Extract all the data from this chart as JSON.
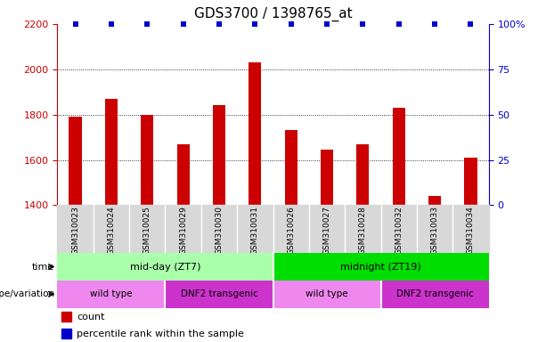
{
  "title": "GDS3700 / 1398765_at",
  "samples": [
    "GSM310023",
    "GSM310024",
    "GSM310025",
    "GSM310029",
    "GSM310030",
    "GSM310031",
    "GSM310026",
    "GSM310027",
    "GSM310028",
    "GSM310032",
    "GSM310033",
    "GSM310034"
  ],
  "counts": [
    1790,
    1870,
    1800,
    1670,
    1840,
    2030,
    1730,
    1645,
    1670,
    1830,
    1440,
    1610
  ],
  "percentiles": [
    100,
    100,
    100,
    100,
    100,
    100,
    100,
    100,
    100,
    100,
    100,
    100
  ],
  "ylim_left": [
    1400,
    2200
  ],
  "ylim_right": [
    0,
    100
  ],
  "yticks_left": [
    1400,
    1600,
    1800,
    2000,
    2200
  ],
  "yticks_right": [
    0,
    25,
    50,
    75,
    100
  ],
  "bar_color": "#cc0000",
  "dot_color": "#0000cc",
  "time_groups": [
    {
      "label": "mid-day (ZT7)",
      "start": 0,
      "end": 6,
      "color": "#aaffaa"
    },
    {
      "label": "midnight (ZT19)",
      "start": 6,
      "end": 12,
      "color": "#00dd00"
    }
  ],
  "genotype_groups": [
    {
      "label": "wild type",
      "start": 0,
      "end": 3,
      "color": "#ee88ee"
    },
    {
      "label": "DNF2 transgenic",
      "start": 3,
      "end": 6,
      "color": "#cc33cc"
    },
    {
      "label": "wild type",
      "start": 6,
      "end": 9,
      "color": "#ee88ee"
    },
    {
      "label": "DNF2 transgenic",
      "start": 9,
      "end": 12,
      "color": "#cc33cc"
    }
  ],
  "time_label": "time",
  "genotype_label": "genotype/variation",
  "legend_count_label": "count",
  "legend_percentile_label": "percentile rank within the sample",
  "title_fontsize": 11,
  "tick_fontsize": 8,
  "label_fontsize": 8,
  "bar_width": 0.35,
  "background_color": "#ffffff",
  "left_color": "#cc0000",
  "right_color": "#0000cc",
  "sample_bg_color": "#d8d8d8",
  "sample_divider_color": "#ffffff"
}
